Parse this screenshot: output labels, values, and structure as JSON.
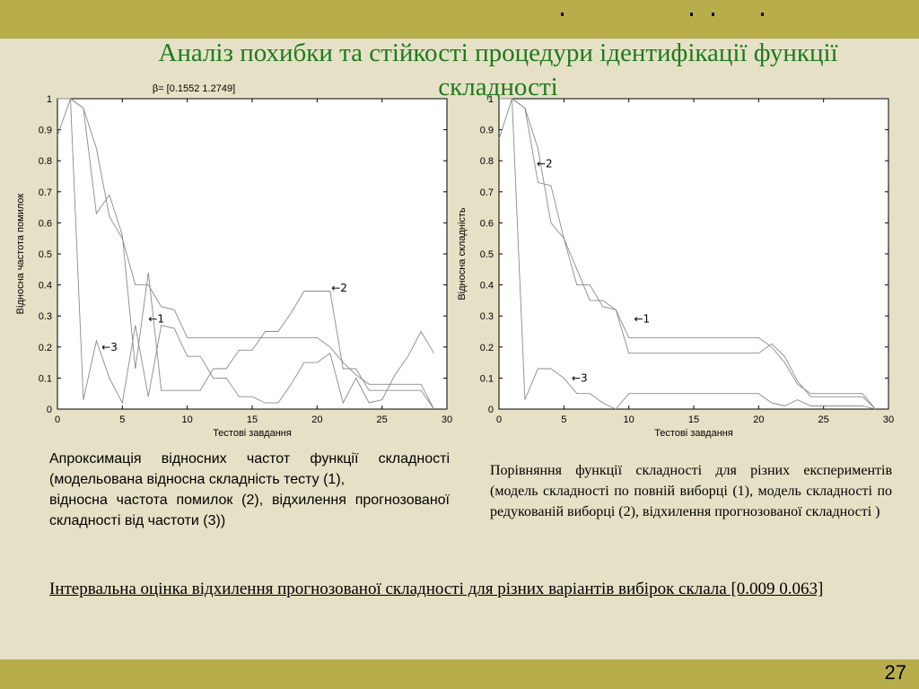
{
  "title": "Аналіз похибки та стійкості процедури ідентифікації функції складності",
  "colors": {
    "bar": "#b7ae4b",
    "background": "#e6e1c6",
    "title": "#1e7a1e"
  },
  "chart_data": [
    {
      "type": "line",
      "title": "β=  [0.1552  1.2749]",
      "xlabel": "Тестові завдання",
      "ylabel": "Відносна частота помилок",
      "xlim": [
        0,
        30
      ],
      "ylim": [
        0,
        1
      ],
      "xticks": [
        0,
        5,
        10,
        15,
        20,
        25,
        30
      ],
      "yticks": [
        0,
        0.1,
        0.2,
        0.3,
        0.4,
        0.5,
        0.6,
        0.7,
        0.8,
        0.9,
        1
      ],
      "grid": false,
      "series": [
        {
          "name": "←1",
          "x": [
            0,
            1,
            2,
            3,
            4,
            5,
            6,
            7,
            8,
            9,
            10,
            11,
            12,
            13,
            14,
            15,
            16,
            17,
            18,
            19,
            20,
            21,
            22,
            23,
            24,
            25,
            26,
            27,
            28,
            29
          ],
          "values": [
            1,
            1,
            0.97,
            0.84,
            0.62,
            0.55,
            0.4,
            0.4,
            0.33,
            0.32,
            0.23,
            0.23,
            0.23,
            0.23,
            0.23,
            0.23,
            0.23,
            0.23,
            0.23,
            0.23,
            0.23,
            0.2,
            0.15,
            0.11,
            0.08,
            0.08,
            0.08,
            0.08,
            0.08,
            0
          ]
        },
        {
          "name": "←2",
          "x": [
            0,
            1,
            2,
            3,
            4,
            5,
            6,
            7,
            8,
            9,
            10,
            11,
            12,
            13,
            14,
            15,
            16,
            17,
            18,
            19,
            20,
            21,
            22,
            23,
            24,
            25,
            26,
            27,
            28,
            29
          ],
          "values": [
            1,
            1,
            0.97,
            0.63,
            0.69,
            0.56,
            0.13,
            0.44,
            0.06,
            0.06,
            0.06,
            0.06,
            0.13,
            0.13,
            0.19,
            0.19,
            0.25,
            0.25,
            0.31,
            0.38,
            0.38,
            0.38,
            0.13,
            0.13,
            0.06,
            0.06,
            0.06,
            0.06,
            0.06,
            0
          ]
        },
        {
          "name": "←3",
          "x": [
            0,
            1,
            2,
            3,
            4,
            5,
            6,
            7,
            8,
            9,
            10,
            11,
            12,
            13,
            14,
            15,
            16,
            17,
            18,
            19,
            20,
            21,
            22,
            23,
            24,
            25,
            26,
            27,
            28,
            29
          ],
          "values": [
            0.88,
            1,
            0.03,
            0.22,
            0.1,
            0.02,
            0.27,
            0.04,
            0.27,
            0.26,
            0.17,
            0.17,
            0.1,
            0.1,
            0.04,
            0.04,
            0.02,
            0.02,
            0.08,
            0.15,
            0.15,
            0.18,
            0.02,
            0.1,
            0.02,
            0.03,
            0.11,
            0.17,
            0.25,
            0.18
          ]
        }
      ]
    },
    {
      "type": "line",
      "title": "",
      "xlabel": "Тестові завдання",
      "ylabel": "Відносна складність",
      "xlim": [
        0,
        30
      ],
      "ylim": [
        0,
        1
      ],
      "xticks": [
        0,
        5,
        10,
        15,
        20,
        25,
        30
      ],
      "yticks": [
        0,
        0.1,
        0.2,
        0.3,
        0.4,
        0.5,
        0.6,
        0.7,
        0.8,
        0.9,
        1
      ],
      "grid": false,
      "series": [
        {
          "name": "←1",
          "x": [
            0,
            1,
            2,
            3,
            4,
            5,
            6,
            7,
            8,
            9,
            10,
            11,
            12,
            13,
            14,
            15,
            16,
            17,
            18,
            19,
            20,
            21,
            22,
            23,
            24,
            25,
            26,
            27,
            28,
            29
          ],
          "values": [
            1,
            1,
            0.97,
            0.84,
            0.6,
            0.55,
            0.4,
            0.4,
            0.33,
            0.32,
            0.23,
            0.23,
            0.23,
            0.23,
            0.23,
            0.23,
            0.23,
            0.23,
            0.23,
            0.23,
            0.23,
            0.2,
            0.15,
            0.08,
            0.05,
            0.05,
            0.05,
            0.05,
            0.05,
            0
          ]
        },
        {
          "name": "←2",
          "x": [
            0,
            1,
            2,
            3,
            4,
            5,
            6,
            7,
            8,
            9,
            10,
            11,
            12,
            13,
            14,
            15,
            16,
            17,
            18,
            19,
            20,
            21,
            22,
            23,
            24,
            25,
            26,
            27,
            28,
            29
          ],
          "values": [
            1,
            1,
            0.97,
            0.73,
            0.72,
            0.55,
            0.45,
            0.35,
            0.35,
            0.32,
            0.18,
            0.18,
            0.18,
            0.18,
            0.18,
            0.18,
            0.18,
            0.18,
            0.18,
            0.18,
            0.18,
            0.21,
            0.17,
            0.09,
            0.04,
            0.04,
            0.04,
            0.04,
            0.04,
            0
          ]
        },
        {
          "name": "←3",
          "x": [
            0,
            1,
            2,
            3,
            4,
            5,
            6,
            7,
            8,
            9,
            10,
            11,
            12,
            13,
            14,
            15,
            16,
            17,
            18,
            19,
            20,
            21,
            22,
            23,
            24,
            25,
            26,
            27,
            28,
            29
          ],
          "values": [
            0.87,
            1,
            0.03,
            0.13,
            0.13,
            0.1,
            0.05,
            0.05,
            0.02,
            0,
            0.05,
            0.05,
            0.05,
            0.05,
            0.05,
            0.05,
            0.05,
            0.05,
            0.05,
            0.05,
            0.05,
            0.02,
            0.01,
            0.03,
            0.01,
            0.01,
            0.01,
            0.01,
            0.01,
            0
          ]
        }
      ]
    }
  ],
  "caption_left": [
    "Апроксимація відносних частот функції складності (модельована відносна складність тесту (1),",
    "відносна частота помилок (2), відхилення прогнозованої складності від частоти (3))"
  ],
  "caption_right": "Порівняння функції складності для різних експериментів (модель складності по повній виборці (1), модель складності по редукованій виборці (2), відхилення прогнозованої складності )",
  "interval_note": "Інтервальна оцінка відхилення прогнозованої складності для різних варіантів вибірок склала [0.009 0.063]",
  "page_number": "27"
}
